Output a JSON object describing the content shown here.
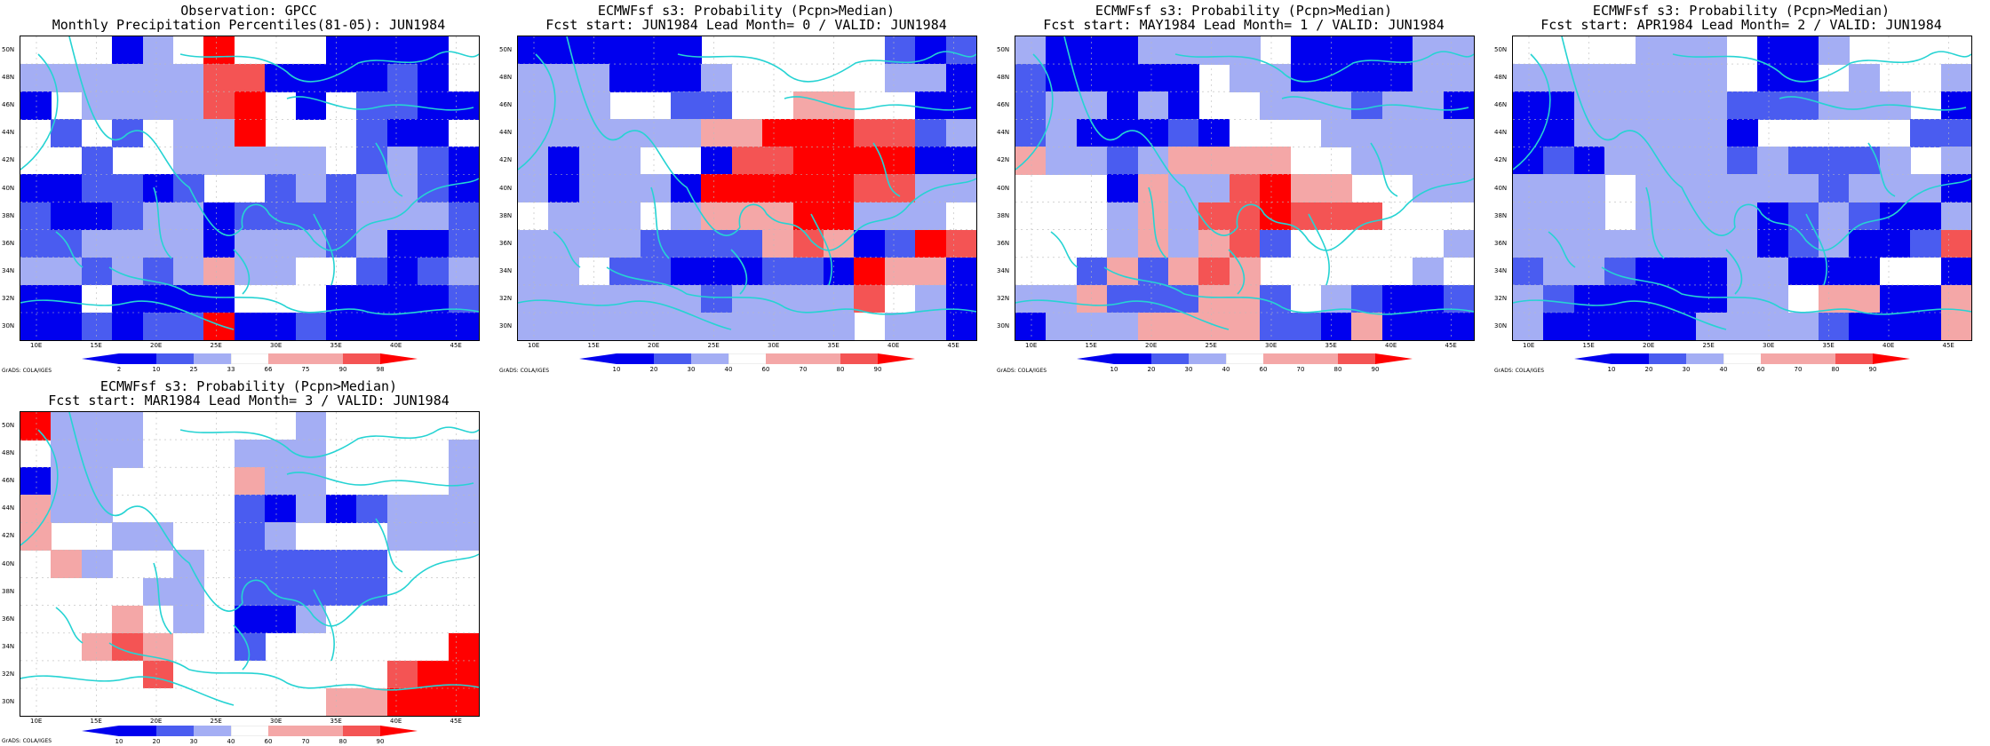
{
  "lat_labels": [
    "50N",
    "48N",
    "46N",
    "44N",
    "42N",
    "40N",
    "38N",
    "36N",
    "34N",
    "32N",
    "30N"
  ],
  "lon_labels": [
    "10E",
    "15E",
    "20E",
    "25E",
    "30E",
    "35E",
    "40E",
    "45E"
  ],
  "colors": {
    "dark_blue": "#0000ee",
    "mid_blue": "#4a5cf0",
    "light_blue": "#a4aef4",
    "white": "#ffffff",
    "light_red": "#f4a7a7",
    "mid_red": "#f45454",
    "dark_red": "#ff0000",
    "coast": "#26d3d3"
  },
  "credit": "GrADS: COLA/IGES",
  "panels": [
    {
      "title1": "Observation: GPCC",
      "title2": "Monthly Precipitation Percentiles(81-05): JUN1984",
      "cbar_labels": [
        "2",
        "10",
        "25",
        "33",
        "66",
        "75",
        "90",
        "98"
      ]
    },
    {
      "title1": "ECMWFsf s3: Probability (Pcpn>Median)",
      "title2": "Fcst start: JUN1984  Lead Month= 0 / VALID: JUN1984",
      "cbar_labels": [
        "10",
        "20",
        "30",
        "40",
        "60",
        "70",
        "80",
        "90"
      ]
    },
    {
      "title1": "ECMWFsf s3: Probability (Pcpn>Median)",
      "title2": "Fcst start: MAY1984  Lead Month= 1 / VALID: JUN1984",
      "cbar_labels": [
        "10",
        "20",
        "30",
        "40",
        "60",
        "70",
        "80",
        "90"
      ]
    },
    {
      "title1": "ECMWFsf s3: Probability (Pcpn>Median)",
      "title2": "Fcst start: APR1984  Lead Month= 2 / VALID: JUN1984",
      "cbar_labels": [
        "10",
        "20",
        "30",
        "40",
        "60",
        "70",
        "80",
        "90"
      ]
    },
    {
      "title1": "ECMWFsf s3: Probability (Pcpn>Median)",
      "title2": "Fcst start: MAR1984  Lead Month= 3 / VALID: JUN1984",
      "cbar_labels": [
        "10",
        "20",
        "30",
        "40",
        "60",
        "70",
        "80",
        "90"
      ]
    }
  ]
}
